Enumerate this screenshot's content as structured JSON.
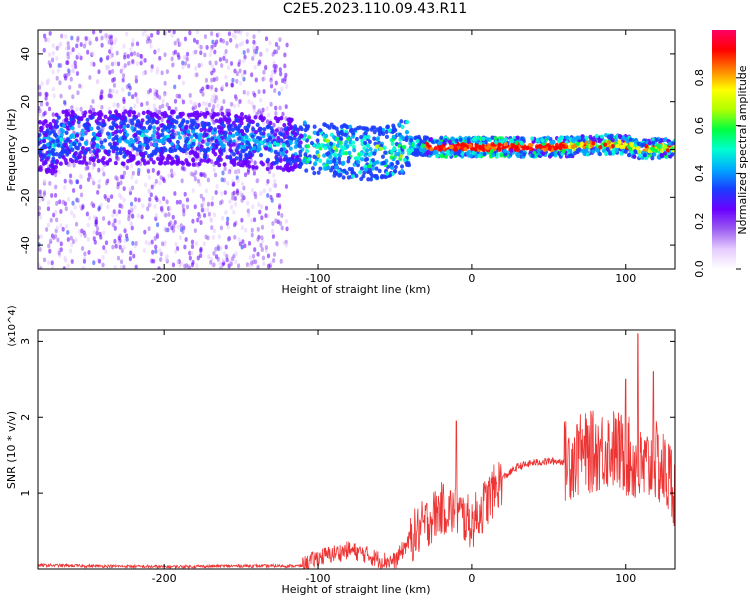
{
  "title": "C2E5.2023.110.09.43.R11",
  "chart_data": [
    {
      "type": "heatmap",
      "title": "C2E5.2023.110.09.43.R11",
      "xlabel": "Height of straight line (km)",
      "ylabel": "Frequency (Hz)",
      "xlim": [
        -282,
        132
      ],
      "ylim": [
        -50,
        50
      ],
      "x_ticks": [
        -200,
        -100,
        0,
        100
      ],
      "y_ticks": [
        -40,
        -20,
        0,
        20,
        40
      ],
      "grid": false,
      "colorbar": {
        "label": "Normalized spectral amplitude",
        "range": [
          0,
          1
        ],
        "ticks": [
          "0.0",
          "0.2",
          "0.4",
          "0.6",
          "0.8"
        ],
        "colormap": [
          "#ffffff",
          "#e6ccff",
          "#9a5cf0",
          "#6a00ff",
          "#1a3cff",
          "#00aaff",
          "#00ffd0",
          "#00ff40",
          "#b0ff00",
          "#ffff00",
          "#ff8000",
          "#ff0000",
          "#ff0066"
        ]
      },
      "description_features": {
        "ridge": [
          [
            -270,
            5
          ],
          [
            -200,
            5
          ],
          [
            -150,
            4
          ],
          [
            -120,
            2
          ],
          [
            -100,
            0
          ],
          [
            -80,
            -1
          ],
          [
            -60,
            -2
          ],
          [
            -40,
            2
          ],
          [
            -20,
            1
          ],
          [
            0,
            1
          ],
          [
            40,
            1
          ],
          [
            60,
            1
          ],
          [
            80,
            2
          ],
          [
            100,
            2
          ],
          [
            110,
            0
          ],
          [
            130,
            1
          ]
        ]
      }
    },
    {
      "type": "line",
      "xlabel": "Height of straight line (km)",
      "ylabel": "SNR (10 * v/v)",
      "y_multiplier": "(x10^4)",
      "xlim": [
        -282,
        132
      ],
      "ylim": [
        0,
        3.15
      ],
      "x_ticks": [
        -200,
        -100,
        0,
        100
      ],
      "y_ticks": [
        1,
        2,
        3
      ],
      "color": "#ee3333",
      "series": [
        {
          "x": [
            -282,
            -250,
            -200,
            -150,
            -110,
            -100,
            -90,
            -80,
            -70,
            -60,
            -50,
            -40,
            -30,
            -20,
            -10,
            0,
            10,
            20,
            30,
            40,
            50,
            60,
            70,
            80,
            90,
            100,
            110,
            120,
            132
          ],
          "y": [
            0.05,
            0.04,
            0.03,
            0.04,
            0.04,
            0.15,
            0.2,
            0.25,
            0.2,
            0.12,
            0.1,
            0.4,
            0.6,
            0.8,
            0.75,
            0.6,
            0.9,
            1.2,
            1.35,
            1.4,
            1.42,
            1.42,
            1.5,
            1.55,
            1.6,
            1.5,
            1.3,
            1.4,
            1.1
          ],
          "peaks": [
            [
              -10,
              1.95
            ],
            [
              70,
              1.8
            ],
            [
              100,
              2.5
            ],
            [
              108,
              3.1
            ],
            [
              118,
              2.6
            ]
          ]
        }
      ]
    }
  ]
}
